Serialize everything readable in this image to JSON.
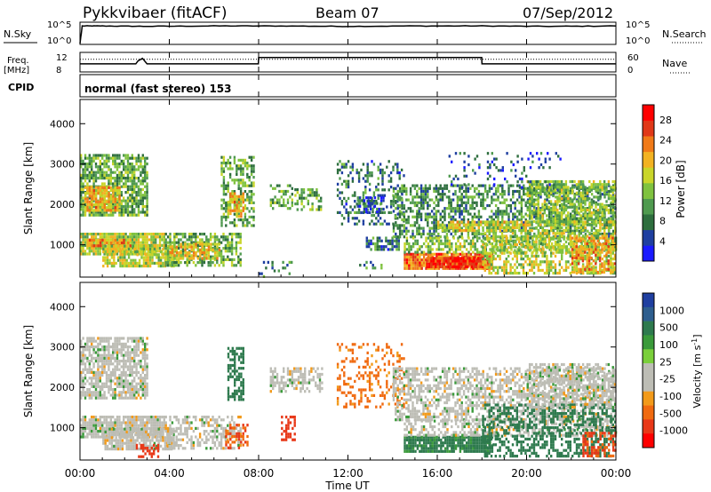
{
  "header": {
    "station": "Pykkvibaer (fitACF)",
    "beam": "Beam 07",
    "date": "07/Sep/2012"
  },
  "colors": {
    "power_scale": [
      "#1a1aff",
      "#1f3fa0",
      "#2e6e3e",
      "#4f9a4f",
      "#7fc23f",
      "#c9d52a",
      "#f2b222",
      "#f07a18",
      "#e03818",
      "#ff0000"
    ],
    "velocity_scale": [
      "#1f3fa0",
      "#2e5e8e",
      "#2e7a4e",
      "#3a9a3a",
      "#7acf3a",
      "#bdbdb5",
      "#bdbdb5",
      "#f29a1a",
      "#f06a10",
      "#e83818",
      "#ff0000"
    ]
  },
  "chart_data": [
    {
      "type": "line",
      "panel": "nsky-nsearch",
      "left_label": "N.Sky",
      "right_label": "N.Search",
      "left_ticks": [
        "10^5",
        "10^0"
      ],
      "right_ticks": [
        "10^5",
        "10^0"
      ],
      "series": [
        {
          "x": [
            0,
            0.1,
            1,
            3,
            6,
            9,
            12,
            15,
            18,
            21,
            24
          ],
          "y": [
            0,
            4.3,
            4.3,
            4.2,
            4.3,
            4.3,
            4.2,
            4.3,
            4.3,
            4.2,
            4.3
          ]
        }
      ],
      "ylim": [
        0,
        5
      ]
    },
    {
      "type": "line",
      "panel": "freq-nave",
      "left_label": "Freq. [MHz]",
      "right_label": "Nave",
      "left_ticks": [
        "12",
        "8"
      ],
      "right_ticks": [
        "60",
        "0"
      ],
      "series": [
        {
          "x": [
            0,
            2.5,
            2.6,
            2.8,
            3.0,
            7.99,
            8.0,
            17.99,
            18.0,
            24
          ],
          "y": [
            9.5,
            9.5,
            10.2,
            10.8,
            9.5,
            9.5,
            11.0,
            11.0,
            9.5,
            9.5
          ]
        },
        {
          "x": [
            0,
            24
          ],
          "y": [
            40,
            40
          ]
        }
      ],
      "xlim": [
        0,
        24
      ]
    },
    {
      "type": "label",
      "panel": "cpid",
      "label": "CPID",
      "text": "normal (fast stereo) 153"
    },
    {
      "type": "heatmap",
      "panel": "power",
      "ylabel": "Slant Range [km]",
      "yticks": [
        1000,
        2000,
        3000,
        4000
      ],
      "ylim": [
        200,
        4600
      ],
      "xlim": [
        0,
        24
      ],
      "colorbar": {
        "label": "Power [dB]",
        "ticks": [
          4,
          8,
          12,
          16,
          20,
          24,
          28
        ],
        "range": [
          0,
          31
        ]
      },
      "regions": [
        {
          "t": [
            0.0,
            3.0
          ],
          "r": [
            1750,
            3250
          ],
          "v": 12,
          "d": 0.75
        },
        {
          "t": [
            0.2,
            1.8
          ],
          "r": [
            1850,
            2450
          ],
          "v": 20,
          "d": 0.85
        },
        {
          "t": [
            0.0,
            3.8
          ],
          "r": [
            800,
            1300
          ],
          "v": 16,
          "d": 0.9
        },
        {
          "t": [
            0.3,
            2.3
          ],
          "r": [
            950,
            1150
          ],
          "v": 22,
          "d": 0.8
        },
        {
          "t": [
            1.0,
            4.2
          ],
          "r": [
            450,
            1000
          ],
          "v": 16,
          "d": 0.8
        },
        {
          "t": [
            3.8,
            7.2
          ],
          "r": [
            500,
            1300
          ],
          "v": 12,
          "d": 0.6
        },
        {
          "t": [
            4.0,
            6.2
          ],
          "r": [
            650,
            1050
          ],
          "v": 19,
          "d": 0.7
        },
        {
          "t": [
            6.3,
            7.8
          ],
          "r": [
            1500,
            3200
          ],
          "v": 12,
          "d": 0.5
        },
        {
          "t": [
            6.6,
            7.3
          ],
          "r": [
            1700,
            2300
          ],
          "v": 20,
          "d": 0.6
        },
        {
          "t": [
            8.5,
            9.5
          ],
          "r": [
            1900,
            2500
          ],
          "v": 12,
          "d": 0.5
        },
        {
          "t": [
            9.6,
            10.8
          ],
          "r": [
            1900,
            2400
          ],
          "v": 12,
          "d": 0.5
        },
        {
          "t": [
            8.0,
            9.5
          ],
          "r": [
            200,
            600
          ],
          "v": 8,
          "d": 0.25
        },
        {
          "t": [
            11.5,
            14.5
          ],
          "r": [
            1500,
            3100
          ],
          "v": 8,
          "d": 0.3
        },
        {
          "t": [
            12.4,
            13.6
          ],
          "r": [
            1800,
            2200
          ],
          "v": 6,
          "d": 0.6
        },
        {
          "t": [
            12.8,
            14.3
          ],
          "r": [
            900,
            1200
          ],
          "v": 8,
          "d": 0.6
        },
        {
          "t": [
            12.5,
            13.5
          ],
          "r": [
            400,
            600
          ],
          "v": 10,
          "d": 0.5
        },
        {
          "t": [
            14.0,
            24.0
          ],
          "r": [
            1200,
            2500
          ],
          "v": 10,
          "d": 0.55
        },
        {
          "t": [
            16.0,
            20.0
          ],
          "r": [
            1350,
            1600
          ],
          "v": 18,
          "d": 0.7
        },
        {
          "t": [
            20.0,
            24.0
          ],
          "r": [
            1500,
            2600
          ],
          "v": 14,
          "d": 0.6
        },
        {
          "t": [
            14.5,
            18.5
          ],
          "r": [
            400,
            800
          ],
          "v": 24,
          "d": 0.95
        },
        {
          "t": [
            15.5,
            18.0
          ],
          "r": [
            450,
            700
          ],
          "v": 28,
          "d": 0.95
        },
        {
          "t": [
            14.5,
            24.0
          ],
          "r": [
            800,
            1200
          ],
          "v": 14,
          "d": 0.6
        },
        {
          "t": [
            18.0,
            24.0
          ],
          "r": [
            300,
            1600
          ],
          "v": 16,
          "d": 0.55
        },
        {
          "t": [
            22.0,
            24.0
          ],
          "r": [
            300,
            1200
          ],
          "v": 22,
          "d": 0.5
        },
        {
          "t": [
            16.5,
            21.5
          ],
          "r": [
            2400,
            3300
          ],
          "v": 6,
          "d": 0.15
        }
      ]
    },
    {
      "type": "heatmap",
      "panel": "velocity",
      "ylabel": "Slant Range [km]",
      "xlabel": "Time UT",
      "xticks": [
        "00:00",
        "04:00",
        "08:00",
        "12:00",
        "16:00",
        "20:00",
        "00:00"
      ],
      "yticks": [
        1000,
        2000,
        3000,
        4000
      ],
      "ylim": [
        200,
        4600
      ],
      "xlim": [
        0,
        24
      ],
      "colorbar": {
        "label": "Velocity [m s^-1]",
        "ticks": [
          1000,
          500,
          100,
          25,
          -25,
          -100,
          -500,
          -1000
        ]
      },
      "regions": [
        {
          "t": [
            0.0,
            3.0
          ],
          "r": [
            1750,
            3250
          ],
          "v": 0,
          "d": 0.75
        },
        {
          "t": [
            0.0,
            3.8
          ],
          "r": [
            800,
            1300
          ],
          "v": 0,
          "d": 0.85
        },
        {
          "t": [
            1.0,
            4.2
          ],
          "r": [
            450,
            1000
          ],
          "v": 0,
          "d": 0.8
        },
        {
          "t": [
            3.8,
            7.2
          ],
          "r": [
            500,
            1300
          ],
          "v": 0,
          "d": 0.55
        },
        {
          "t": [
            6.6,
            7.3
          ],
          "r": [
            1700,
            3000
          ],
          "v": 150,
          "d": 0.6
        },
        {
          "t": [
            6.5,
            7.5
          ],
          "r": [
            500,
            1100
          ],
          "v": -300,
          "d": 0.45
        },
        {
          "t": [
            2.5,
            3.5
          ],
          "r": [
            300,
            600
          ],
          "v": -400,
          "d": 0.5
        },
        {
          "t": [
            8.5,
            10.8
          ],
          "r": [
            1900,
            2500
          ],
          "v": 0,
          "d": 0.5
        },
        {
          "t": [
            9.0,
            9.6
          ],
          "r": [
            700,
            1300
          ],
          "v": -400,
          "d": 0.5
        },
        {
          "t": [
            11.5,
            14.5
          ],
          "r": [
            1500,
            3100
          ],
          "v": -80,
          "d": 0.25
        },
        {
          "t": [
            14.0,
            24.0
          ],
          "r": [
            1200,
            2500
          ],
          "v": 0,
          "d": 0.55
        },
        {
          "t": [
            14.5,
            18.5
          ],
          "r": [
            400,
            800
          ],
          "v": 80,
          "d": 0.9
        },
        {
          "t": [
            14.5,
            24.0
          ],
          "r": [
            800,
            1200
          ],
          "v": 0,
          "d": 0.55
        },
        {
          "t": [
            18.0,
            24.0
          ],
          "r": [
            300,
            1600
          ],
          "v": 200,
          "d": 0.45
        },
        {
          "t": [
            20.0,
            24.0
          ],
          "r": [
            1500,
            2600
          ],
          "v": 0,
          "d": 0.55
        },
        {
          "t": [
            22.5,
            24.0
          ],
          "r": [
            300,
            900
          ],
          "v": -300,
          "d": 0.5
        }
      ]
    }
  ]
}
